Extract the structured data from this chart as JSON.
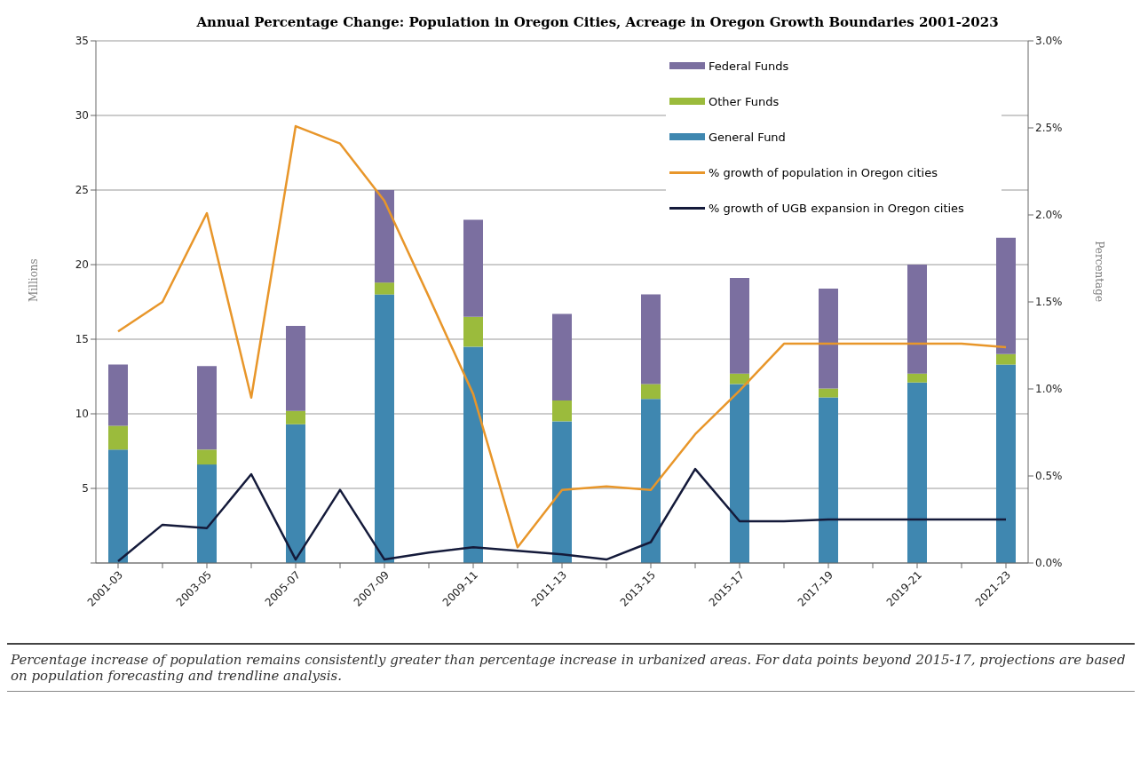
{
  "chart_data": {
    "type": "bar",
    "title": "Annual Percentage Change:  Population in Oregon Cities, Acreage in Oregon Growth Boundaries 2001-2023",
    "categories": [
      "2001-03",
      null,
      "2003-05",
      null,
      "2005-07",
      null,
      "2007-09",
      null,
      "2009-11",
      null,
      "2011-13",
      null,
      "2013-15",
      null,
      "2015-17",
      null,
      "2017-19",
      null,
      "2019-21",
      null,
      "2021-23"
    ],
    "stacked": true,
    "series": [
      {
        "name": "General Fund",
        "color": "#3f87b0",
        "values": [
          7.6,
          null,
          6.6,
          null,
          9.3,
          null,
          18.0,
          null,
          14.5,
          null,
          9.5,
          null,
          11.0,
          null,
          12.0,
          null,
          11.1,
          null,
          12.1,
          null,
          13.3
        ]
      },
      {
        "name": "Other Funds",
        "color": "#9bbb3c",
        "values": [
          1.6,
          null,
          1.0,
          null,
          0.9,
          null,
          0.8,
          null,
          2.0,
          null,
          1.4,
          null,
          1.0,
          null,
          0.7,
          null,
          0.6,
          null,
          0.6,
          null,
          0.7
        ]
      },
      {
        "name": "Federal Funds",
        "color": "#7b6fa0",
        "values": [
          4.1,
          null,
          5.6,
          null,
          5.7,
          null,
          6.2,
          null,
          6.5,
          null,
          5.8,
          null,
          6.0,
          null,
          6.4,
          null,
          6.7,
          null,
          7.3,
          null,
          7.8
        ]
      },
      {
        "name": "% growth of population in Oregon cities",
        "type": "line",
        "axis": "y2",
        "color": "#e8962a",
        "values": [
          1.33,
          1.5,
          2.01,
          0.95,
          2.51,
          2.41,
          2.08,
          1.53,
          0.97,
          0.09,
          0.42,
          0.44,
          0.42,
          0.74,
          0.99,
          1.26,
          1.26,
          1.26,
          1.26,
          1.26,
          1.24
        ]
      },
      {
        "name": "% growth of UGB expansion in Oregon cities",
        "type": "line",
        "axis": "y2",
        "color": "#141a3a",
        "values": [
          0.01,
          0.22,
          0.2,
          0.51,
          0.02,
          0.42,
          0.02,
          0.06,
          0.09,
          0.07,
          0.05,
          0.02,
          0.12,
          0.54,
          0.24,
          0.24,
          0.25,
          0.25,
          0.25,
          0.25,
          0.25
        ]
      }
    ],
    "ylabel": "Millions",
    "y2label": "Percentage",
    "ylim": [
      0,
      35
    ],
    "yticks": [
      {
        "value": 0,
        "label": null
      },
      5,
      10,
      15,
      20,
      25,
      30,
      35
    ],
    "y2lim": [
      0,
      3
    ],
    "y2ticks": [
      {
        "value": 0,
        "label": "0.0%"
      },
      {
        "value": 0.5,
        "label": "0.5%"
      },
      {
        "value": 1,
        "label": "1.0%"
      },
      {
        "value": 1.5,
        "label": "1.5%"
      },
      {
        "value": 2,
        "label": "2.0%"
      },
      {
        "value": 2.5,
        "label": "2.5%"
      },
      {
        "value": 3,
        "label": "3.0%"
      }
    ],
    "grid": "y",
    "legend": "top right",
    "marker": "none",
    "line_style": "solid",
    "annotations": [
      "Percentage increase of population remains consistently greater than percentage increase in urbanized areas.  For data points beyond 2015-17, projections are based on population forecasting and trendline analysis."
    ]
  }
}
